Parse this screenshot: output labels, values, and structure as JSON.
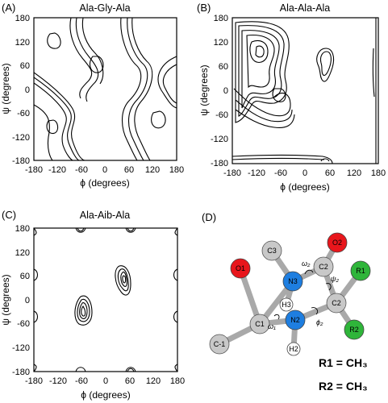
{
  "panels": [
    {
      "label": "(A)",
      "title": "Ala-Gly-Ala"
    },
    {
      "label": "(B)",
      "title": "Ala-Ala-Ala"
    },
    {
      "label": "(C)",
      "title": "Ala-Aib-Ala"
    },
    {
      "label": "(D)"
    }
  ],
  "axes": {
    "xlabel": "ϕ (degrees)",
    "ylabel": "ψ (degrees)",
    "xticks": [
      "-180",
      "-120",
      "-60",
      "0",
      "60",
      "120",
      "180"
    ],
    "yticks": [
      "180",
      "120",
      "60",
      "0",
      "-60",
      "-120",
      "-180"
    ]
  },
  "molecule": {
    "atoms": {
      "o1": "O1",
      "c3": "C3",
      "o2": "O2",
      "c2": "C2",
      "n3": "N3",
      "r1": "R1",
      "c1": "C1",
      "h3": "H3",
      "c2a": "C2",
      "n2": "N2",
      "cm1": "C-1",
      "r2": "R2",
      "h2": "H2"
    },
    "angles": {
      "omega2": "ω₂",
      "psi2": "ψ₂",
      "omega1": "ω₁",
      "phi2": "ϕ₂"
    },
    "legend": [
      "R1 = CH₃",
      "R2 = CH₃"
    ]
  },
  "colors": {
    "oxygen": "#e8161c",
    "nitrogen": "#1e7ee0",
    "carbon": "#c8c8c8",
    "r_group": "#2fb53a",
    "hydrogen": "#ffffff",
    "bond": "#a9a9a9"
  }
}
